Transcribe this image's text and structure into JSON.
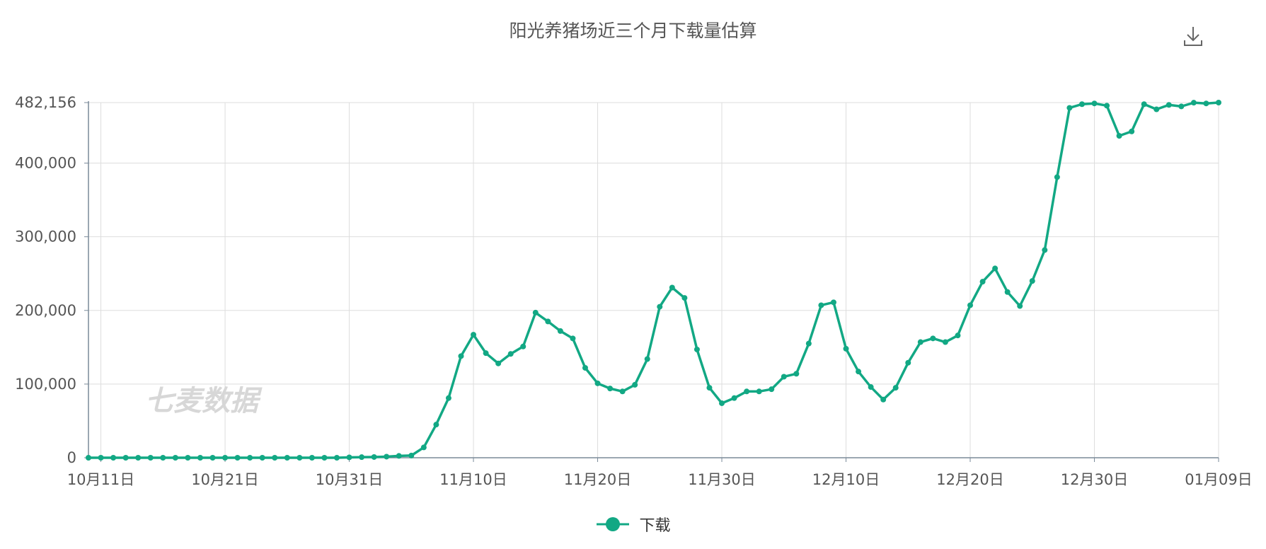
{
  "chart_data": {
    "type": "line",
    "title": "阳光养猪场近三个月下载量估算",
    "watermark": "七麦数据",
    "series_color": "#12a884",
    "ylim": [
      0,
      482156
    ],
    "y_ticks": [
      0,
      100000,
      200000,
      300000,
      400000,
      482156
    ],
    "y_tick_labels": [
      "0",
      "100,000",
      "200,000",
      "300,000",
      "400,000",
      "482,156"
    ],
    "x_tick_labels": [
      "10月11日",
      "10月21日",
      "10月31日",
      "11月10日",
      "11月20日",
      "11月30日",
      "12月10日",
      "12月20日",
      "12月30日",
      "01月09日"
    ],
    "x_tick_indices": [
      1,
      11,
      21,
      31,
      41,
      51,
      61,
      71,
      81,
      91
    ],
    "x_count": 92,
    "legend_position": "bottom-center",
    "series": [
      {
        "name": "下载",
        "values": [
          0,
          0,
          0,
          0,
          0,
          0,
          0,
          0,
          0,
          0,
          0,
          0,
          0,
          0,
          0,
          0,
          0,
          0,
          0,
          0,
          0,
          500,
          800,
          1000,
          1500,
          2500,
          3000,
          14000,
          45000,
          81000,
          138000,
          167000,
          142000,
          128000,
          141000,
          151000,
          197000,
          185000,
          172000,
          162000,
          122000,
          101000,
          94000,
          90000,
          99000,
          134000,
          205000,
          231000,
          217000,
          147000,
          95000,
          74000,
          81000,
          90000,
          90000,
          93000,
          110000,
          114000,
          155000,
          207000,
          211000,
          148000,
          117000,
          96000,
          79000,
          95000,
          129000,
          157000,
          162000,
          157000,
          166000,
          207000,
          239000,
          257000,
          225000,
          206000,
          240000,
          282000,
          381000,
          475000,
          480000,
          481000,
          478000,
          437000,
          443000,
          480000,
          473000,
          479000,
          477000,
          482000,
          481000,
          482156
        ]
      }
    ]
  }
}
